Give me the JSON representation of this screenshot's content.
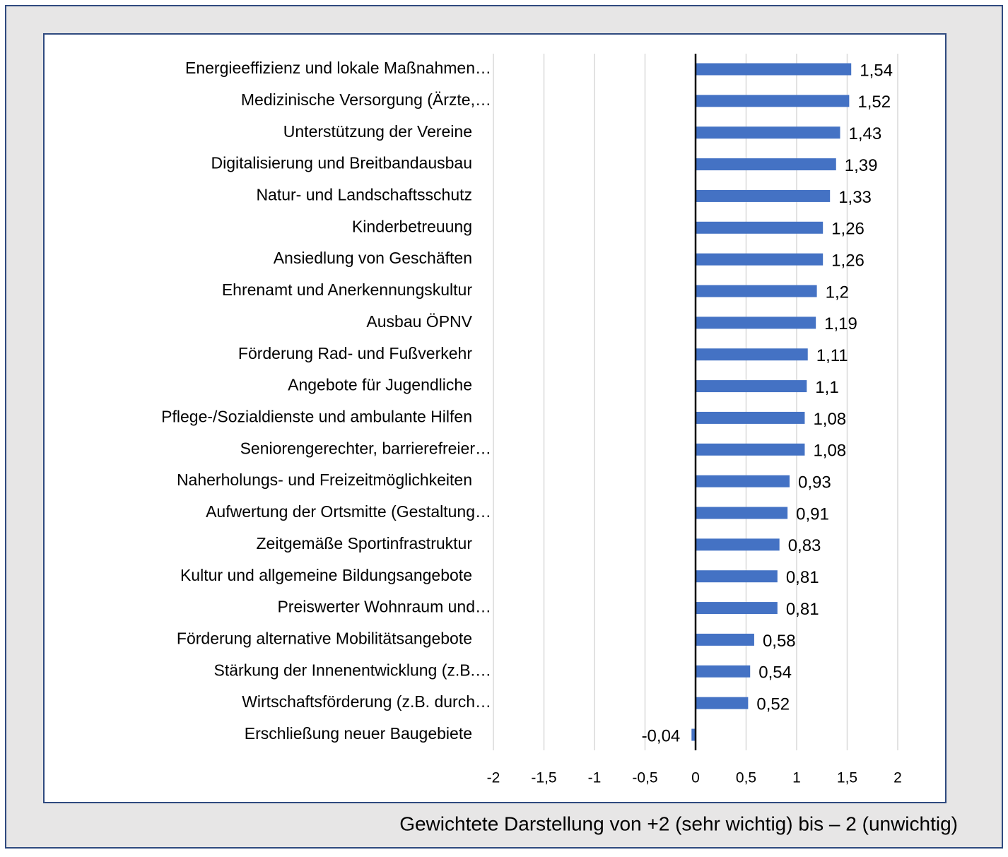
{
  "chart_data": {
    "type": "bar",
    "orientation": "horizontal",
    "categories": [
      "Energieeffizienz und lokale Maßnahmen…",
      "Medizinische Versorgung (Ärzte,…",
      "Unterstützung der Vereine",
      "Digitalisierung und Breitbandausbau",
      "Natur- und Landschaftsschutz",
      "Kinderbetreuung",
      "Ansiedlung von Geschäften",
      "Ehrenamt und Anerkennungskultur",
      "Ausbau ÖPNV",
      "Förderung Rad- und Fußverkehr",
      "Angebote für Jugendliche",
      "Pflege-/Sozialdienste und ambulante Hilfen",
      "Seniorengerechter, barrierefreier…",
      "Naherholungs- und Freizeitmöglichkeiten",
      "Aufwertung der Ortsmitte (Gestaltung…",
      "Zeitgemäße Sportinfrastruktur",
      "Kultur und allgemeine Bildungsangebote",
      "Preiswerter Wohnraum und…",
      "Förderung alternative Mobilitätsangebote",
      "Stärkung der Innenentwicklung (z.B.…",
      "Wirtschaftsförderung (z.B. durch…",
      "Erschließung neuer Baugebiete"
    ],
    "values": [
      1.54,
      1.52,
      1.43,
      1.39,
      1.33,
      1.26,
      1.26,
      1.2,
      1.19,
      1.11,
      1.1,
      1.08,
      1.08,
      0.93,
      0.91,
      0.83,
      0.81,
      0.81,
      0.58,
      0.54,
      0.52,
      -0.04
    ],
    "value_labels": [
      "1,54",
      "1,52",
      "1,43",
      "1,39",
      "1,33",
      "1,26",
      "1,26",
      "1,2",
      "1,19",
      "1,11",
      "1,1",
      "1,08",
      "1,08",
      "0,93",
      "0,91",
      "0,83",
      "0,81",
      "0,81",
      "0,58",
      "0,54",
      "0,52",
      "-0,04"
    ],
    "color": "#4472c4",
    "xlim": [
      -2,
      2
    ],
    "xticks": [
      -2,
      {
        "value": -1.5,
        "label": "-1,5"
      },
      -1,
      {
        "value": -0.5,
        "label": "-0,5"
      },
      0,
      {
        "value": 0.5,
        "label": "0,5"
      },
      1,
      {
        "value": 1.5,
        "label": "1,5"
      },
      2
    ],
    "grid": true,
    "caption": "Gewichtete Darstellung von +2 (sehr wichtig) bis – 2  (unwichtig)"
  }
}
